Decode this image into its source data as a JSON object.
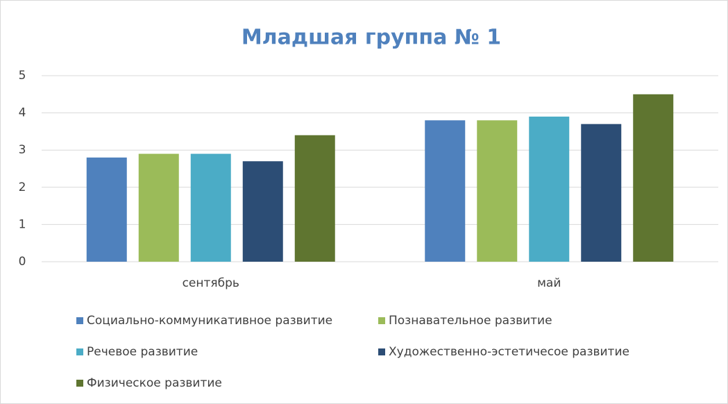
{
  "chart_data": {
    "type": "bar",
    "title": "Младшая группа № 1",
    "categories": [
      "сентябрь",
      "май"
    ],
    "series": [
      {
        "name": "Социально-коммуникативное развитие",
        "color": "#4f81bd",
        "values": [
          2.8,
          3.8
        ]
      },
      {
        "name": "Познавательное развитие",
        "color": "#9bbb59",
        "values": [
          2.9,
          3.8
        ]
      },
      {
        "name": "Речевое развитие",
        "color": "#4bacc6",
        "values": [
          2.9,
          3.9
        ]
      },
      {
        "name": "Художественно-эстетичесое развитие",
        "color": "#2c4d75",
        "values": [
          2.7,
          3.7
        ]
      },
      {
        "name": "Физическое развитие",
        "color": "#5f7530",
        "values": [
          3.4,
          4.5
        ]
      }
    ],
    "ylim": [
      0,
      5
    ],
    "yticks": [
      0,
      1,
      2,
      3,
      4,
      5
    ],
    "grid": true,
    "legend": "bottom"
  }
}
